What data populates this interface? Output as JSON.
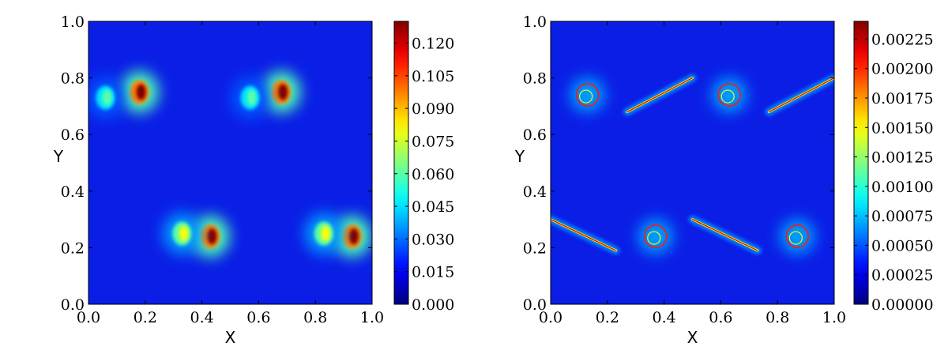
{
  "chart_data": [
    {
      "type": "heatmap",
      "title": "",
      "xlabel": "X",
      "ylabel": "Y",
      "xlim": [
        0.0,
        1.0
      ],
      "ylim": [
        0.0,
        1.0
      ],
      "x_ticks": [
        "0.0",
        "0.2",
        "0.4",
        "0.6",
        "0.8",
        "1.0"
      ],
      "y_ticks": [
        "0.0",
        "0.2",
        "0.4",
        "0.6",
        "0.8",
        "1.0"
      ],
      "colormap": "jet",
      "colorbar": {
        "range": [
          0.0,
          0.13
        ],
        "ticks": [
          "0.000",
          "0.015",
          "0.030",
          "0.045",
          "0.060",
          "0.075",
          "0.090",
          "0.105",
          "0.120"
        ],
        "tick_values": [
          0.0,
          0.015,
          0.03,
          0.045,
          0.06,
          0.075,
          0.09,
          0.105,
          0.12
        ]
      },
      "features": [
        {
          "kind": "blob",
          "x": 0.18,
          "y": 0.75,
          "value": 0.13
        },
        {
          "kind": "blob",
          "x": 0.68,
          "y": 0.75,
          "value": 0.13
        },
        {
          "kind": "blob",
          "x": 0.43,
          "y": 0.24,
          "value": 0.13
        },
        {
          "kind": "blob",
          "x": 0.93,
          "y": 0.24,
          "value": 0.13
        },
        {
          "kind": "blob",
          "x": 0.33,
          "y": 0.25,
          "value": 0.08
        },
        {
          "kind": "blob",
          "x": 0.83,
          "y": 0.25,
          "value": 0.08
        },
        {
          "kind": "blob",
          "x": 0.06,
          "y": 0.73,
          "value": 0.06
        },
        {
          "kind": "blob",
          "x": 0.57,
          "y": 0.73,
          "value": 0.06
        }
      ]
    },
    {
      "type": "heatmap",
      "title": "",
      "xlabel": "X",
      "ylabel": "Y",
      "xlim": [
        0.0,
        1.0
      ],
      "ylim": [
        0.0,
        1.0
      ],
      "x_ticks": [
        "0.0",
        "0.2",
        "0.4",
        "0.6",
        "0.8",
        "1.0"
      ],
      "y_ticks": [
        "0.0",
        "0.2",
        "0.4",
        "0.6",
        "0.8",
        "1.0"
      ],
      "colormap": "jet",
      "colorbar": {
        "range": [
          0.0,
          0.0024
        ],
        "ticks": [
          "0.00000",
          "0.00025",
          "0.00050",
          "0.00075",
          "0.00100",
          "0.00125",
          "0.00150",
          "0.00175",
          "0.00200",
          "0.00225"
        ],
        "tick_values": [
          0.0,
          0.00025,
          0.0005,
          0.00075,
          0.001,
          0.00125,
          0.0015,
          0.00175,
          0.002,
          0.00225
        ]
      },
      "features": [
        {
          "kind": "streak",
          "x1": 0.27,
          "y1": 0.68,
          "x2": 0.5,
          "y2": 0.8,
          "value": 0.0022
        },
        {
          "kind": "streak",
          "x1": 0.77,
          "y1": 0.68,
          "x2": 1.0,
          "y2": 0.8,
          "value": 0.0022
        },
        {
          "kind": "streak",
          "x1": 0.0,
          "y1": 0.3,
          "x2": 0.23,
          "y2": 0.19,
          "value": 0.0022
        },
        {
          "kind": "streak",
          "x1": 0.5,
          "y1": 0.3,
          "x2": 0.73,
          "y2": 0.19,
          "value": 0.0022
        },
        {
          "kind": "vortex",
          "x": 0.13,
          "y": 0.74,
          "value": 0.0024
        },
        {
          "kind": "vortex",
          "x": 0.63,
          "y": 0.74,
          "value": 0.0024
        },
        {
          "kind": "vortex",
          "x": 0.37,
          "y": 0.24,
          "value": 0.0024
        },
        {
          "kind": "vortex",
          "x": 0.87,
          "y": 0.24,
          "value": 0.0024
        }
      ]
    }
  ]
}
